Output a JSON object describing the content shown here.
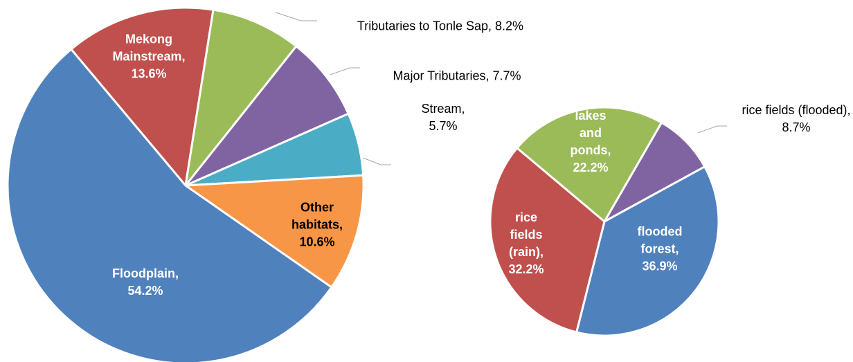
{
  "chart_data": [
    {
      "type": "pie",
      "values": [
        13.6,
        8.2,
        7.7,
        5.7,
        10.6,
        54.2
      ],
      "value_labels": [
        "Mekong Mainstream, 13.6%",
        "Tributaries to Tonle Sap, 8.2%",
        "Major Tributaries, 7.7%",
        "Stream, 5.7%",
        "Other habitats, 10.6%",
        "Floodplain, 54.2%"
      ],
      "colors": [
        "#c0504d",
        "#9bbb59",
        "#8064a2",
        "#4bacc6",
        "#f79646",
        "#4f81bd"
      ]
    },
    {
      "type": "pie",
      "values": [
        8.7,
        36.9,
        32.2,
        22.2
      ],
      "value_labels": [
        "rice fields (flooded), 8.7%",
        "flooded forest, 36.9%",
        "rice fields (rain), 32.2%",
        "lakes and ponds, 22.2%"
      ],
      "colors": [
        "#8064a2",
        "#4f81bd",
        "#c0504d",
        "#9bbb59"
      ]
    }
  ]
}
